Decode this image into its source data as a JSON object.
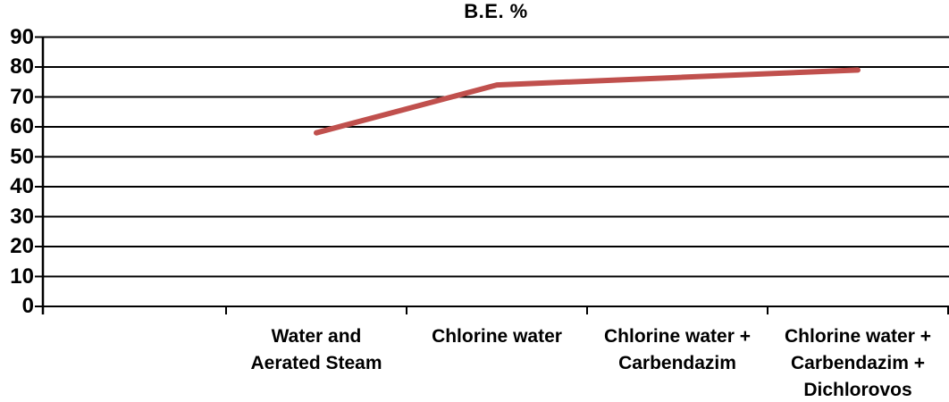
{
  "title": "B.E. %",
  "chart_data": {
    "type": "line",
    "title": "B.E. %",
    "xlabel": "",
    "ylabel": "",
    "categories": [
      "Water and Aerated Steam",
      "Chlorine water",
      "Chlorine water + Carbendazim",
      "Chlorine water + Carbendazim + Dichlorovos"
    ],
    "category_label_lines": [
      [
        "Water and",
        "Aerated Steam"
      ],
      [
        "Chlorine water"
      ],
      [
        "Chlorine water +",
        "Carbendazim"
      ],
      [
        "Chlorine water +",
        "Carbendazim +",
        "Dichlorovos"
      ]
    ],
    "series": [
      {
        "name": "B.E. %",
        "values": [
          58,
          74,
          76.5,
          79
        ]
      }
    ],
    "ylim": [
      0,
      90
    ],
    "yticks": [
      0,
      10,
      20,
      30,
      40,
      50,
      60,
      70,
      80,
      90
    ],
    "grid": true,
    "legend": false,
    "line_color": "#C0504D",
    "axis_color": "#000000",
    "text_color": "#000000"
  }
}
